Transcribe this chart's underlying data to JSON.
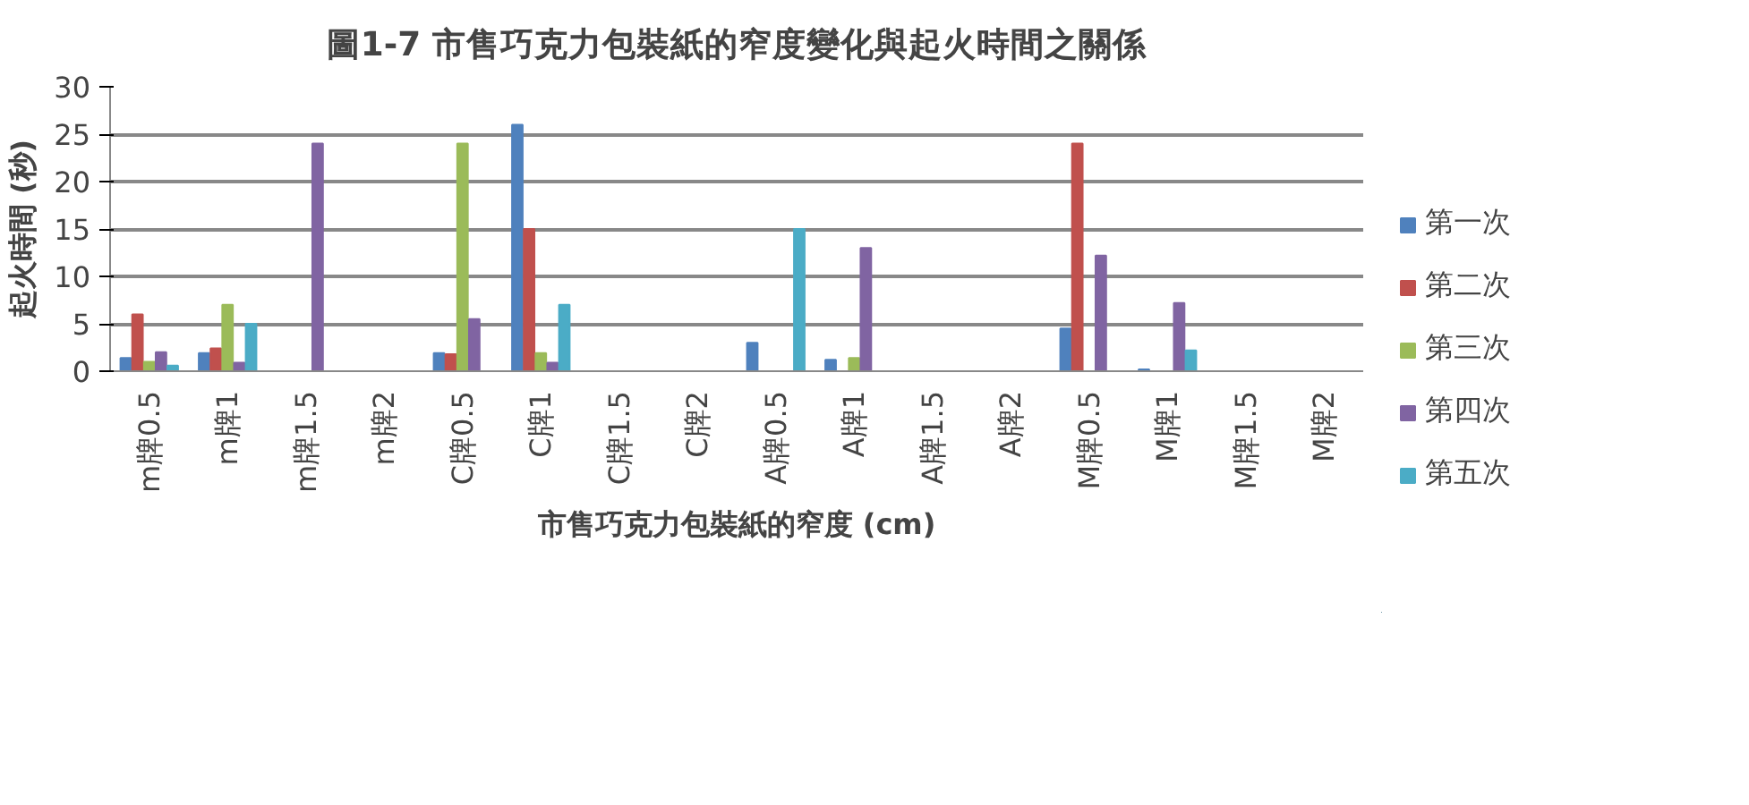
{
  "chart_data": {
    "type": "bar",
    "title": "圖1-7 市售巧克力包裝紙的窄度變化與起火時間之關係",
    "xlabel": "市售巧克力包裝紙的窄度 (cm)",
    "ylabel": "起火時間 (秒)",
    "categories": [
      "m牌0.5",
      "m牌1",
      "m牌1.5",
      "m牌2",
      "C牌0.5",
      "C牌1",
      "C牌1.5",
      "C牌2",
      "A牌0.5",
      "A牌1",
      "A牌1.5",
      "A牌2",
      "M牌0.5",
      "M牌1",
      "M牌1.5",
      "M牌2"
    ],
    "series": [
      {
        "name": "第一次",
        "color": "#4f81bd",
        "values": [
          1.4,
          1.9,
          0,
          0,
          1.9,
          26,
          0,
          0,
          3,
          1.2,
          0,
          0,
          4.5,
          0.2,
          0,
          0
        ]
      },
      {
        "name": "第二次",
        "color": "#c0504d",
        "values": [
          6,
          2.4,
          0,
          0,
          1.8,
          15,
          0,
          0,
          0,
          0,
          0,
          0,
          24,
          0,
          0,
          0
        ]
      },
      {
        "name": "第三次",
        "color": "#9bbb59",
        "values": [
          1,
          7,
          0,
          0,
          24,
          1.9,
          0,
          0,
          0,
          1.4,
          0,
          0,
          0,
          0,
          0,
          0
        ]
      },
      {
        "name": "第四次",
        "color": "#8064a2",
        "values": [
          2,
          0.9,
          24,
          0,
          5.5,
          0.9,
          0,
          0,
          0,
          13,
          0,
          0,
          12.2,
          7.2,
          0,
          0
        ]
      },
      {
        "name": "第五次",
        "color": "#4bacc6",
        "values": [
          0.6,
          5,
          0,
          0,
          0,
          7,
          0,
          0,
          15,
          0,
          0,
          0,
          0,
          2.2,
          0,
          0
        ]
      }
    ],
    "ylim": [
      0,
      30
    ],
    "yticks": [
      0,
      5,
      10,
      15,
      20,
      25,
      30
    ],
    "grid": "y",
    "legend": "right"
  }
}
